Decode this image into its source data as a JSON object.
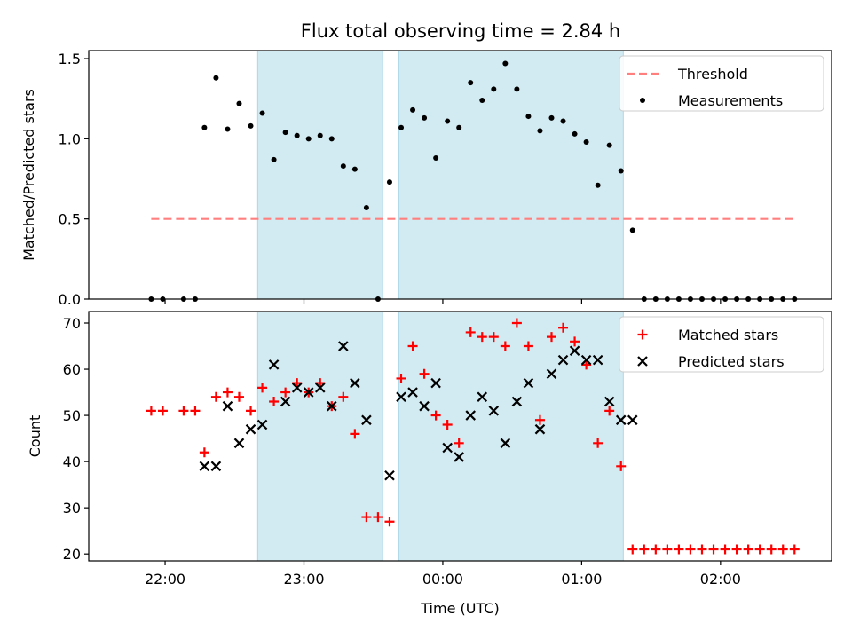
{
  "title": "Flux total observing time = 2.84 h",
  "colors": {
    "shade": "#add8e6",
    "threshold": "#ff7f7f",
    "measurement": "#000000",
    "matched": "#ff0000",
    "predicted": "#000000",
    "axis": "#000000"
  },
  "chart_data": [
    {
      "type": "scatter",
      "ylabel": "Matched/Predicted stars",
      "xlim": [
        21.45,
        2.8
      ],
      "ylim": [
        0,
        1.55
      ],
      "yticks": [
        "0.0",
        "0.5",
        "1.0",
        "1.5"
      ],
      "ytick_values": [
        0,
        0.5,
        1.0,
        1.5
      ],
      "legend": "top-right",
      "shaded_intervals": [
        [
          "22:40",
          "23:34"
        ],
        [
          "23:41",
          "01:18"
        ]
      ],
      "series": [
        {
          "name": "Threshold",
          "kind": "line-dashed",
          "x": [
            "21:54",
            "02:32"
          ],
          "y": [
            0.5,
            0.5
          ]
        },
        {
          "name": "Measurements",
          "kind": "dot",
          "x": [
            "21:54",
            "21:59",
            "22:08",
            "22:13",
            "22:17",
            "22:22",
            "22:27",
            "22:32",
            "22:37",
            "22:42",
            "22:47",
            "22:52",
            "22:57",
            "23:02",
            "23:07",
            "23:12",
            "23:17",
            "23:22",
            "23:27",
            "23:32",
            "23:37",
            "23:42",
            "23:47",
            "23:52",
            "23:57",
            "00:02",
            "00:07",
            "00:12",
            "00:17",
            "00:22",
            "00:27",
            "00:32",
            "00:37",
            "00:42",
            "00:47",
            "00:52",
            "00:57",
            "01:02",
            "01:07",
            "01:12",
            "01:17",
            "01:22",
            "01:27",
            "01:32",
            "01:37",
            "01:42",
            "01:47",
            "01:52",
            "01:57",
            "02:02",
            "02:07",
            "02:12",
            "02:17",
            "02:22",
            "02:27",
            "02:32"
          ],
          "y": [
            0,
            0,
            0,
            0,
            1.07,
            1.38,
            1.06,
            1.22,
            1.08,
            1.16,
            0.87,
            1.04,
            1.02,
            1.0,
            1.02,
            1.0,
            0.83,
            0.81,
            0.57,
            0,
            0.73,
            1.07,
            1.18,
            1.13,
            0.88,
            1.11,
            1.07,
            1.35,
            1.24,
            1.31,
            1.47,
            1.31,
            1.14,
            1.05,
            1.13,
            1.11,
            1.03,
            0.98,
            0.71,
            0.96,
            0.8,
            0.43,
            0,
            0,
            0,
            0,
            0,
            0,
            0,
            0,
            0,
            0,
            0,
            0,
            0,
            0
          ]
        }
      ]
    },
    {
      "type": "scatter",
      "xlabel": "Time (UTC)",
      "ylabel": "Count",
      "xlim": [
        21.45,
        2.8
      ],
      "ylim": [
        18.5,
        72.5
      ],
      "xticks": [
        "22:00",
        "23:00",
        "00:00",
        "01:00",
        "02:00"
      ],
      "yticks": [
        "20",
        "30",
        "40",
        "50",
        "60",
        "70"
      ],
      "ytick_values": [
        20,
        30,
        40,
        50,
        60,
        70
      ],
      "legend": "top-right",
      "shaded_intervals": [
        [
          "22:40",
          "23:34"
        ],
        [
          "23:41",
          "01:18"
        ]
      ],
      "series": [
        {
          "name": "Matched stars",
          "kind": "plus",
          "x": [
            "21:54",
            "21:59",
            "22:08",
            "22:13",
            "22:17",
            "22:22",
            "22:27",
            "22:32",
            "22:37",
            "22:42",
            "22:47",
            "22:52",
            "22:57",
            "23:02",
            "23:07",
            "23:12",
            "23:17",
            "23:22",
            "23:27",
            "23:32",
            "23:37",
            "23:42",
            "23:47",
            "23:52",
            "23:57",
            "00:02",
            "00:07",
            "00:12",
            "00:17",
            "00:22",
            "00:27",
            "00:32",
            "00:37",
            "00:42",
            "00:47",
            "00:52",
            "00:57",
            "01:02",
            "01:07",
            "01:12",
            "01:17",
            "01:22",
            "01:27",
            "01:32",
            "01:37",
            "01:42",
            "01:47",
            "01:52",
            "01:57",
            "02:02",
            "02:07",
            "02:12",
            "02:17",
            "02:22",
            "02:27",
            "02:32"
          ],
          "y": [
            51,
            51,
            51,
            51,
            42,
            54,
            55,
            54,
            51,
            56,
            53,
            55,
            57,
            55,
            57,
            52,
            54,
            46,
            28,
            28,
            27,
            58,
            65,
            59,
            50,
            48,
            44,
            68,
            67,
            67,
            65,
            70,
            65,
            49,
            67,
            69,
            66,
            61,
            44,
            51,
            39,
            21,
            21,
            21,
            21,
            21,
            21,
            21,
            21,
            21,
            21,
            21,
            21,
            21,
            21,
            21
          ]
        },
        {
          "name": "Predicted stars",
          "kind": "x",
          "x": [
            "22:17",
            "22:22",
            "22:27",
            "22:32",
            "22:37",
            "22:42",
            "22:47",
            "22:52",
            "22:57",
            "23:02",
            "23:07",
            "23:12",
            "23:17",
            "23:22",
            "23:27",
            "23:37",
            "23:42",
            "23:47",
            "23:52",
            "23:57",
            "00:02",
            "00:07",
            "00:12",
            "00:17",
            "00:22",
            "00:27",
            "00:32",
            "00:37",
            "00:42",
            "00:47",
            "00:52",
            "00:57",
            "01:02",
            "01:07",
            "01:12",
            "01:17",
            "01:22"
          ],
          "y": [
            39,
            39,
            52,
            44,
            47,
            48,
            61,
            53,
            56,
            55,
            56,
            52,
            65,
            57,
            49,
            37,
            54,
            55,
            52,
            57,
            43,
            41,
            50,
            54,
            51,
            44,
            53,
            57,
            47,
            59,
            62,
            64,
            62,
            62,
            53,
            49,
            49
          ]
        }
      ]
    }
  ]
}
